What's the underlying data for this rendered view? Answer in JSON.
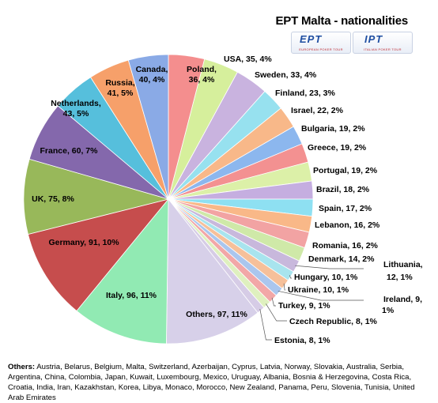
{
  "chart_data": {
    "type": "pie",
    "title": "EPT Malta - nationalities",
    "slices": [
      {
        "label": "Poland",
        "value": 36,
        "percent": "4%",
        "color": "#f48e8e"
      },
      {
        "label": "USA",
        "value": 35,
        "percent": "4%",
        "color": "#d6ef9c"
      },
      {
        "label": "Sweden",
        "value": 33,
        "percent": "4%",
        "color": "#c9b3df"
      },
      {
        "label": "Finland",
        "value": 23,
        "percent": "3%",
        "color": "#97e1ef"
      },
      {
        "label": "Israel",
        "value": 22,
        "percent": "2%",
        "color": "#f8b889"
      },
      {
        "label": "Bulgaria",
        "value": 19,
        "percent": "2%",
        "color": "#8cb7ee"
      },
      {
        "label": "Greece",
        "value": 19,
        "percent": "2%",
        "color": "#f39191"
      },
      {
        "label": "Portugal",
        "value": 19,
        "percent": "2%",
        "color": "#dcf0a8"
      },
      {
        "label": "Brazil",
        "value": 18,
        "percent": "2%",
        "color": "#c5aee0"
      },
      {
        "label": "Spain",
        "value": 17,
        "percent": "2%",
        "color": "#8ee0f2"
      },
      {
        "label": "Lebanon",
        "value": 16,
        "percent": "2%",
        "color": "#f9b888"
      },
      {
        "label": "Romania",
        "value": 16,
        "percent": "2%",
        "color": "#f2a3a3"
      },
      {
        "label": "Denmark",
        "value": 14,
        "percent": "2%",
        "color": "#cfe9a8"
      },
      {
        "label": "Lithuania",
        "value": 12,
        "percent": "1%",
        "color": "#c8b8dc"
      },
      {
        "label": "Hungary",
        "value": 10,
        "percent": "1%",
        "color": "#a8e4ee"
      },
      {
        "label": "Ukraine",
        "value": 10,
        "percent": "1%",
        "color": "#f6c09a"
      },
      {
        "label": "Ireland",
        "value": 9,
        "percent": "1%",
        "color": "#aac6ee"
      },
      {
        "label": "Turkey",
        "value": 9,
        "percent": "1%",
        "color": "#f2a7a7"
      },
      {
        "label": "Czech Republic",
        "value": 8,
        "percent": "1%",
        "color": "#dff0bf"
      },
      {
        "label": "Estonia",
        "value": 8,
        "percent": "1%",
        "color": "#d6cce6"
      },
      {
        "label": "Others",
        "value": 97,
        "percent": "11%",
        "color": "#d7d0e9"
      },
      {
        "label": "Italy",
        "value": 96,
        "percent": "11%",
        "color": "#91eab3"
      },
      {
        "label": "Germany",
        "value": 91,
        "percent": "10%",
        "color": "#c64d4d"
      },
      {
        "label": "UK",
        "value": 75,
        "percent": "8%",
        "color": "#98b85a"
      },
      {
        "label": "France",
        "value": 60,
        "percent": "7%",
        "color": "#8468ac"
      },
      {
        "label": "Netherlands",
        "value": 43,
        "percent": "5%",
        "color": "#56bfdc"
      },
      {
        "label": "Russia",
        "value": 41,
        "percent": "5%",
        "color": "#f6a06a"
      },
      {
        "label": "Canada",
        "value": 40,
        "percent": "4%",
        "color": "#8aaae6"
      }
    ],
    "labels": [
      {
        "text": "Poland,",
        "slice": 0
      },
      {
        "text": "36, 4%",
        "slice": 0
      },
      {
        "text": "USA, 35, 4%",
        "slice": 1
      },
      {
        "text": "Sweden, 33, 4%",
        "slice": 2
      },
      {
        "text": "Finland, 23, 3%",
        "slice": 3
      },
      {
        "text": "Israel, 22, 2%",
        "slice": 4
      },
      {
        "text": "Bulgaria, 19, 2%",
        "slice": 5
      },
      {
        "text": "Greece, 19, 2%",
        "slice": 6
      },
      {
        "text": "Portugal, 19, 2%",
        "slice": 7
      },
      {
        "text": "Brazil, 18, 2%",
        "slice": 8
      },
      {
        "text": "Spain, 17, 2%",
        "slice": 9
      },
      {
        "text": "Lebanon, 16, 2%",
        "slice": 10
      },
      {
        "text": "Romania, 16, 2%",
        "slice": 11
      },
      {
        "text": "Denmark, 14, 2%",
        "slice": 12
      },
      {
        "text": "Lithuania,",
        "slice": 13
      },
      {
        "text": "12, 1%",
        "slice": 13
      },
      {
        "text": "Hungary, 10, 1%",
        "slice": 14
      },
      {
        "text": "Ukraine, 10, 1%",
        "slice": 15
      },
      {
        "text": "Ireland, 9,",
        "slice": 16
      },
      {
        "text": "1%",
        "slice": 16
      },
      {
        "text": "Turkey, 9, 1%",
        "slice": 17
      },
      {
        "text": "Czech Republic, 8, 1%",
        "slice": 18
      },
      {
        "text": "Estonia, 8, 1%",
        "slice": 19
      },
      {
        "text": "Others, 97, 11%",
        "slice": 20
      },
      {
        "text": "Italy, 96, 11%",
        "slice": 21
      },
      {
        "text": "Germany, 91, 10%",
        "slice": 22
      },
      {
        "text": "UK, 75, 8%",
        "slice": 23
      },
      {
        "text": "France, 60, 7%",
        "slice": 24
      },
      {
        "text": "Netherlands,",
        "slice": 25
      },
      {
        "text": "43, 5%",
        "slice": 25
      },
      {
        "text": "Russia,",
        "slice": 26
      },
      {
        "text": "41, 5%",
        "slice": 26
      },
      {
        "text": "Canada,",
        "slice": 27
      },
      {
        "text": "40, 4%",
        "slice": 27
      }
    ]
  },
  "logos": {
    "ept": {
      "mark": "EPT",
      "sub": "EUROPEAN POKER TOUR"
    },
    "ipt": {
      "mark": "IPT",
      "sub": "ITALIAN POKER TOUR"
    }
  },
  "footnote": {
    "lead": "Others:",
    "text": " Austria, Belarus, Belgium, Malta, Switzerland, Azerbaijan, Cyprus, Latvia, Norway, Slovakia, Australia, Serbia, Argentina, China, Colombia, Japan, Kuwait, Luxembourg, Mexico, Uruguay, Albania, Bosnia & Herzegovina, Costa Rica, Croatia, India, Iran, Kazakhstan, Korea, Libya, Monaco, Morocco, New Zealand, Panama, Peru, Slovenia, Tunisia, United Arab Emirates"
  }
}
